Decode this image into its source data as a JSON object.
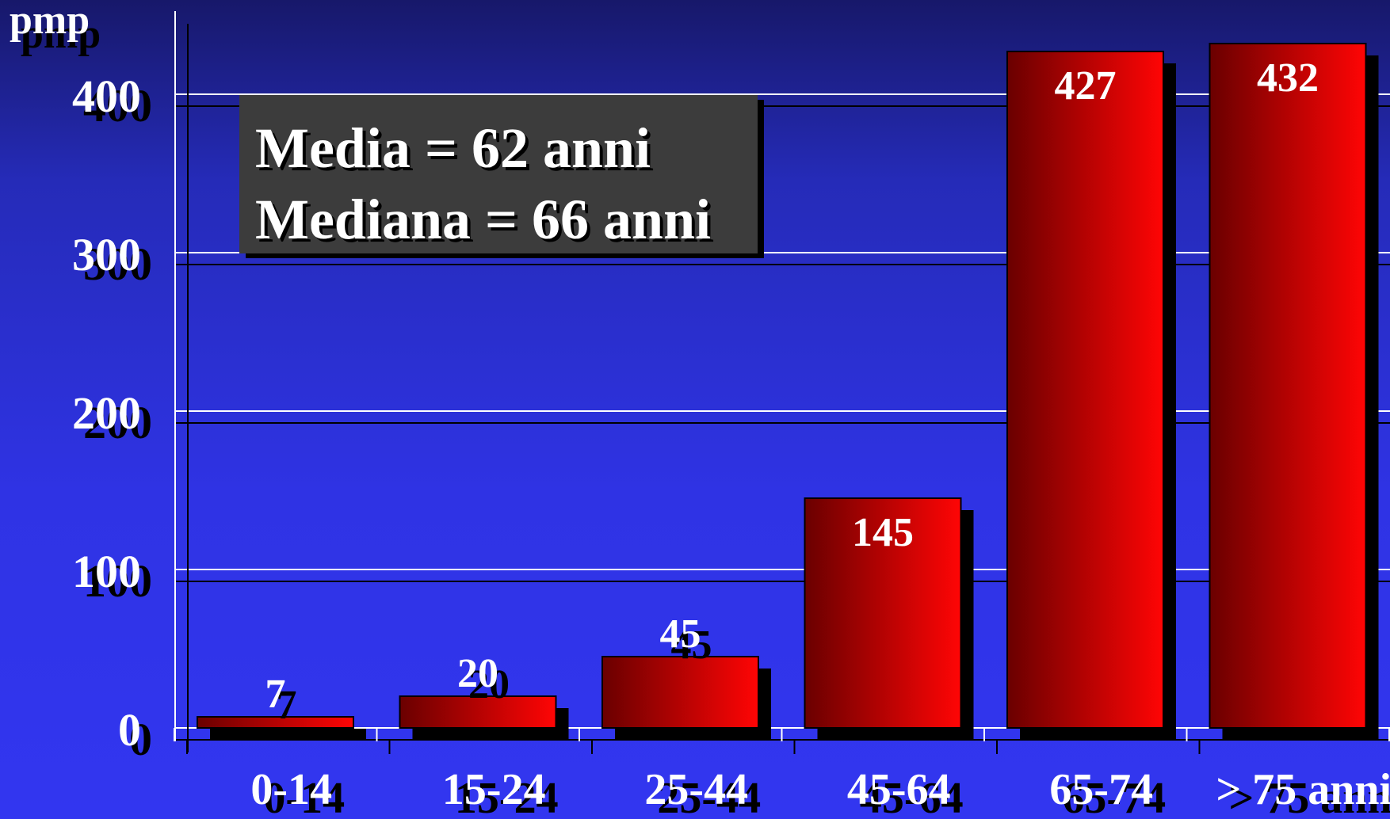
{
  "chart_data": {
    "type": "bar",
    "ylabel": "pmp",
    "categories": [
      "0-14",
      "15-24",
      "25-44",
      "45-64",
      "65-74",
      "> 75 anni"
    ],
    "series": [
      {
        "values": [
          7,
          20,
          45,
          145,
          427,
          432
        ]
      }
    ],
    "data_labels": [
      "7",
      "20",
      "45",
      "145",
      "427",
      "432"
    ],
    "ylim": [
      0,
      450
    ],
    "yticks": [
      0,
      100,
      200,
      300,
      400
    ],
    "grid": true,
    "legend": "none",
    "colors": {
      "bar_dark": "#6a0000",
      "bar_light": "#ff0505",
      "shadow": "#000000",
      "grid": "#ffffff"
    }
  },
  "annotation": {
    "line1": "Media = 62 anni",
    "line2": "Mediana = 66 anni"
  }
}
